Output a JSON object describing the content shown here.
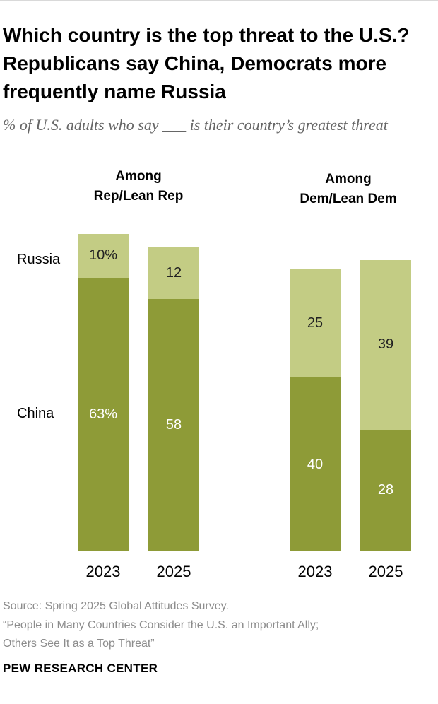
{
  "title": "Which country is the top threat to the U.S.? Republicans say China, Democrats more frequently name Russia",
  "subtitle": "% of U.S. adults who say ___ is their country’s greatest threat",
  "colors": {
    "china": "#8e9b37",
    "russia": "#c3cc84"
  },
  "chart_data": {
    "type": "bar",
    "stacked": true,
    "ylim": [
      0,
      80
    ],
    "row_labels": [
      "Russia",
      "China"
    ],
    "groups": [
      {
        "label_line1": "Among",
        "label_line2": "Rep/Lean Rep",
        "bars": [
          {
            "year": "2023",
            "china": 63,
            "russia": 10,
            "china_label": "63%",
            "russia_label": "10%"
          },
          {
            "year": "2025",
            "china": 58,
            "russia": 12,
            "china_label": "58",
            "russia_label": "12"
          }
        ]
      },
      {
        "label_line1": "Among",
        "label_line2": "Dem/Lean Dem",
        "bars": [
          {
            "year": "2023",
            "china": 40,
            "russia": 25,
            "china_label": "40",
            "russia_label": "25"
          },
          {
            "year": "2025",
            "china": 28,
            "russia": 39,
            "china_label": "28",
            "russia_label": "39"
          }
        ]
      }
    ]
  },
  "footer": {
    "source": "Source: Spring 2025 Global Attitudes Survey.",
    "report_line1": "“People in Many Countries Consider the U.S. an Important Ally;",
    "report_line2": "Others See It as a Top Threat”",
    "logo": "PEW RESEARCH CENTER"
  }
}
